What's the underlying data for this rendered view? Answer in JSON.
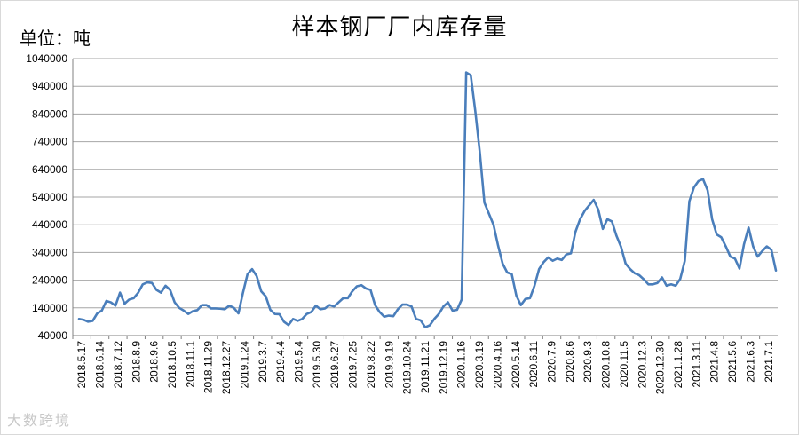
{
  "unit_label": "单位：吨",
  "watermark": "大数跨境",
  "chart_data": {
    "type": "line",
    "title": "样本钢厂厂内库存量",
    "ylim": [
      40000,
      1040000
    ],
    "yticks": [
      40000,
      140000,
      240000,
      340000,
      440000,
      540000,
      640000,
      740000,
      840000,
      940000,
      1040000
    ],
    "xticks": [
      "2018.5.17",
      "2018.6.14",
      "2018.7.12",
      "2018.8.9",
      "2018.9.6",
      "2018.10.5",
      "2018.11.1",
      "2018.11.29",
      "2018.12.27",
      "2019.1.24",
      "2019.3.7",
      "2019.4.4",
      "2019.5.4",
      "2019.5.30",
      "2019.6.27",
      "2019.7.25",
      "2019.8.22",
      "2019.9.19",
      "2019.10.24",
      "2019.11.21",
      "2019.12.19",
      "2020.1.16",
      "2020.3.19",
      "2020.4.16",
      "2020.5.14",
      "2020.6.11",
      "2020.7.9",
      "2020.8.6",
      "2020.9.3",
      "2020.10.8",
      "2020.11.5",
      "2020.12.3",
      "2020.12.30",
      "2021.1.28",
      "2021.3.11",
      "2021.4.8",
      "2021.5.6",
      "2021.6.3",
      "2021.7.1"
    ],
    "grid": true,
    "line_color": "#4a7ebb",
    "series": [
      {
        "values": [
          100000,
          97000,
          90000,
          93000,
          120000,
          130000,
          165000,
          160000,
          148000,
          195000,
          155000,
          170000,
          175000,
          195000,
          225000,
          232000,
          230000,
          205000,
          195000,
          220000,
          205000,
          160000,
          140000,
          130000,
          118000,
          128000,
          132000,
          150000,
          150000,
          138000,
          138000,
          137000,
          135000,
          148000,
          140000,
          120000,
          195000,
          262000,
          280000,
          255000,
          200000,
          182000,
          133000,
          118000,
          117000,
          90000,
          78000,
          100000,
          93000,
          100000,
          118000,
          125000,
          148000,
          135000,
          138000,
          150000,
          145000,
          160000,
          175000,
          175000,
          200000,
          218000,
          222000,
          210000,
          205000,
          150000,
          125000,
          108000,
          112000,
          110000,
          135000,
          152000,
          152000,
          145000,
          100000,
          95000,
          70000,
          77000,
          100000,
          118000,
          145000,
          160000,
          130000,
          133000,
          170000,
          990000,
          980000,
          850000,
          700000,
          520000,
          480000,
          440000,
          365000,
          300000,
          268000,
          262000,
          185000,
          150000,
          172000,
          175000,
          220000,
          280000,
          305000,
          322000,
          310000,
          318000,
          313000,
          333000,
          337000,
          415000,
          460000,
          490000,
          510000,
          530000,
          495000,
          425000,
          460000,
          452000,
          400000,
          360000,
          300000,
          280000,
          265000,
          258000,
          243000,
          225000,
          225000,
          230000,
          250000,
          220000,
          225000,
          220000,
          245000,
          310000,
          525000,
          575000,
          598000,
          605000,
          565000,
          460000,
          405000,
          395000,
          362000,
          325000,
          318000,
          282000,
          370000,
          430000,
          362000,
          325000,
          345000,
          362000,
          350000,
          275000
        ]
      }
    ]
  }
}
